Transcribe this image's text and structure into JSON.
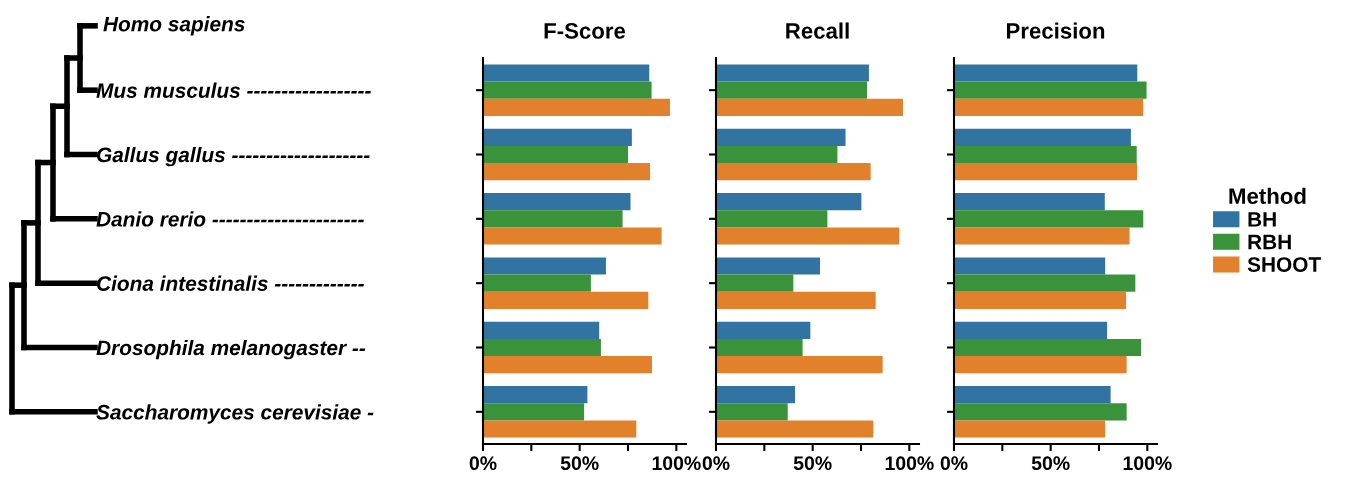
{
  "chart_data": [
    {
      "type": "bar",
      "orientation": "horizontal",
      "title": "F-Score",
      "categories": [
        "Mus musculus ------------------",
        "Gallus gallus --------------------",
        "Danio rerio ----------------------",
        "Ciona intestinalis -------------",
        "Drosophila melanogaster --",
        "Saccharomyces cerevisiae -"
      ],
      "series": [
        {
          "name": "BH",
          "color": "#3274a1",
          "values": [
            86,
            77,
            76.3,
            63.6,
            60.1,
            54
          ]
        },
        {
          "name": "RBH",
          "color": "#3a923a",
          "values": [
            87.2,
            75,
            72.2,
            55.8,
            61,
            52.3
          ]
        },
        {
          "name": "SHOOT",
          "color": "#e1812c",
          "values": [
            96.7,
            86.4,
            92.4,
            85.5,
            87.4,
            79.3
          ]
        }
      ],
      "xlim": [
        0,
        105
      ],
      "xticks": [
        {
          "value": 0,
          "label": "0%"
        },
        {
          "value": 25,
          "label": null
        },
        {
          "value": 50,
          "label": "50%"
        },
        {
          "value": 75,
          "label": null
        },
        {
          "value": 100,
          "label": "100%"
        }
      ],
      "annotations": [
        "Homo sapiens"
      ],
      "legend": "right",
      "legend_title": "Method",
      "grid": false
    },
    {
      "type": "bar",
      "orientation": "horizontal",
      "title": "Recall",
      "categories": [
        null,
        null,
        null,
        null,
        null,
        null
      ],
      "series": [
        {
          "color": "#3274a1",
          "values": [
            79.1,
            67,
            75.2,
            53.8,
            48.8,
            40.9
          ]
        },
        {
          "color": "#3a923a",
          "values": [
            78.1,
            62.8,
            57.6,
            40,
            44.8,
            37.1
          ]
        },
        {
          "color": "#e1812c",
          "values": [
            96.7,
            80,
            94.8,
            82.6,
            86.2,
            81.4
          ]
        }
      ],
      "xlim": [
        0,
        105
      ],
      "xticks": [
        {
          "value": 0,
          "label": "0%"
        },
        {
          "value": 25,
          "label": null
        },
        {
          "value": 50,
          "label": "50%"
        },
        {
          "value": 75,
          "label": null
        },
        {
          "value": 100,
          "label": "100%"
        }
      ],
      "tick_labels": "x",
      "grid": false
    },
    {
      "type": "bar",
      "orientation": "horizontal",
      "title": "Precision",
      "categories": [
        null,
        null,
        null,
        null,
        null,
        null
      ],
      "series": [
        {
          "color": "#3274a1",
          "values": [
            94.8,
            91.5,
            78,
            78.2,
            79.2,
            81
          ]
        },
        {
          "color": "#3a923a",
          "values": [
            99.6,
            94.5,
            97.9,
            93.8,
            96.8,
            89.3
          ]
        },
        {
          "color": "#e1812c",
          "values": [
            97.9,
            94.7,
            90.8,
            89,
            89.3,
            78.2
          ]
        }
      ],
      "xlim": [
        0,
        105
      ],
      "xticks": [
        {
          "value": 0,
          "label": "0%"
        },
        {
          "value": 25,
          "label": null
        },
        {
          "value": 50,
          "label": "50%"
        },
        {
          "value": 75,
          "label": null
        },
        {
          "value": 100,
          "label": "100%"
        }
      ],
      "tick_labels": "x",
      "grid": false
    }
  ]
}
